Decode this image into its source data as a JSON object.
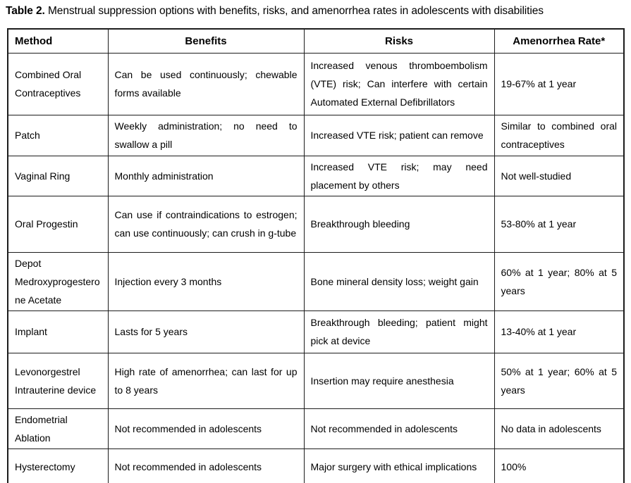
{
  "caption": {
    "label": "Table 2.",
    "text": "Menstrual suppression options with benefits, risks, and amenorrhea rates in adolescents with disabilities"
  },
  "colors": {
    "text": "#000000",
    "border": "#1c1c1c",
    "background": "#ffffff"
  },
  "table": {
    "columns": [
      "Method",
      "Benefits",
      "Risks",
      "Amenorrhea Rate*"
    ],
    "rows": [
      {
        "method": "Combined Oral Contraceptives",
        "benefits": "Can be used continuously; chewable forms available",
        "risks": "Increased venous thromboembolism (VTE) risk; Can interfere with certain Automated External Defibrillators",
        "rate": "19-67% at 1 year"
      },
      {
        "method": "Patch",
        "benefits": "Weekly administration; no need to swallow a pill",
        "risks": "Increased VTE risk; patient can remove",
        "rate": "Similar to combined oral contraceptives"
      },
      {
        "method": "Vaginal Ring",
        "benefits": "Monthly administration",
        "risks": "Increased VTE risk; may need placement by others",
        "rate": "Not well-studied"
      },
      {
        "method": "Oral Progestin",
        "benefits": "Can use if contraindications to estrogen; can use continuously; can crush in g-tube",
        "risks": "Breakthrough bleeding",
        "rate": "53-80% at 1 year"
      },
      {
        "method": "Depot Medroxyprogesterone Acetate",
        "benefits": "Injection every 3 months",
        "risks": "Bone mineral density loss; weight gain",
        "rate": "60% at 1 year; 80% at 5 years"
      },
      {
        "method": "Implant",
        "benefits": "Lasts for 5 years",
        "risks": "Breakthrough bleeding; patient might pick at device",
        "rate": "13-40% at 1 year"
      },
      {
        "method": "Levonorgestrel Intrauterine device",
        "benefits": "High rate of amenorrhea; can last for up to 8 years",
        "risks": "Insertion may require anesthesia",
        "rate": "50% at 1 year; 60% at 5 years"
      },
      {
        "method": "Endometrial Ablation",
        "benefits": "Not recommended in adolescents",
        "risks": "Not recommended in adolescents",
        "rate": "No data in adolescents"
      },
      {
        "method": "Hysterectomy",
        "benefits": "Not recommended in adolescents",
        "risks": "Major surgery with ethical implications",
        "rate": "100%"
      }
    ]
  }
}
